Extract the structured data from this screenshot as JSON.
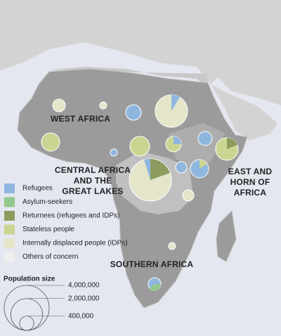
{
  "map": {
    "regions": [
      {
        "lines": [
          "WEST AFRICA"
        ]
      },
      {
        "lines": [
          "CENTRAL AFRICA",
          "AND THE",
          "GREAT LAKES"
        ]
      },
      {
        "lines": [
          "EAST AND",
          "HORN OF",
          "AFRICA"
        ]
      },
      {
        "lines": [
          "SOUTHERN AFRICA"
        ]
      }
    ],
    "legend": [
      {
        "label": "Refugees",
        "color": "#8fb6df"
      },
      {
        "label": "Asylum-seekers",
        "color": "#93c98c"
      },
      {
        "label": "Returnees (refugees and IDPs)",
        "color": "#8c9c5e"
      },
      {
        "label": "Stateless people",
        "color": "#cbd592"
      },
      {
        "label": "Internally displaced people (IDPs)",
        "color": "#e4e5c9"
      },
      {
        "label": "Others of concern",
        "color": "#efefef"
      }
    ],
    "size_legend": {
      "title": "Population size",
      "sizes": [
        {
          "value": 4000000,
          "label": "4,000,000"
        },
        {
          "value": 2000000,
          "label": "2,000,000"
        },
        {
          "value": 400000,
          "label": "400,000"
        }
      ]
    }
  }
}
